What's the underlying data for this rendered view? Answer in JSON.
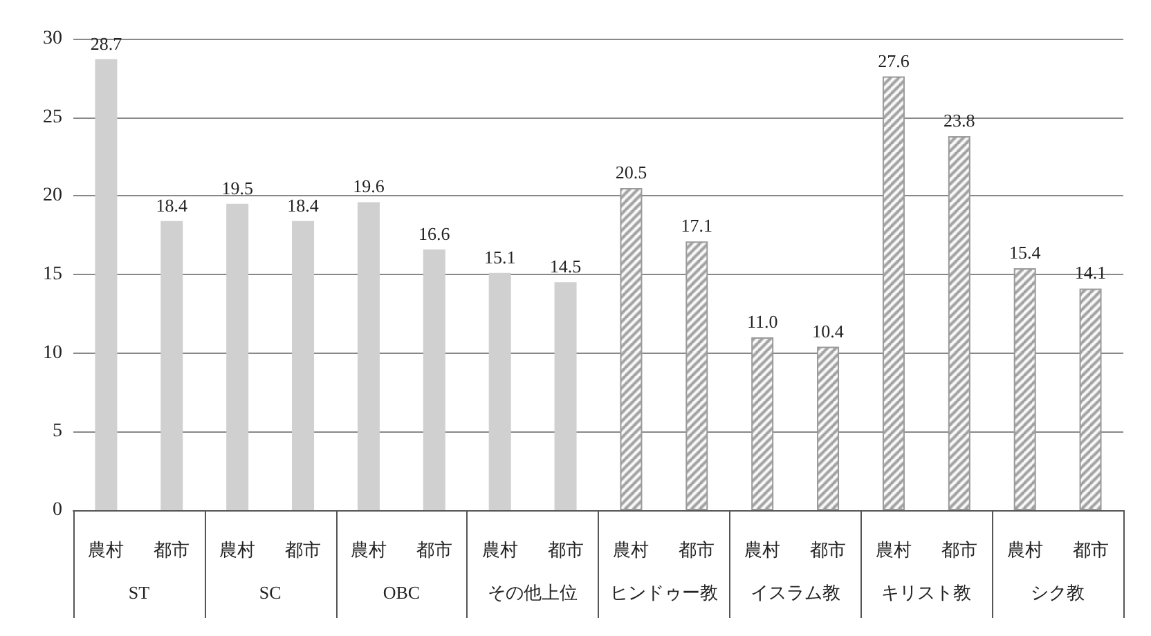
{
  "chart_data": {
    "type": "bar",
    "categories": [
      "農村",
      "都市",
      "農村",
      "都市",
      "農村",
      "都市",
      "農村",
      "都市",
      "農村",
      "都市",
      "農村",
      "都市",
      "農村",
      "都市",
      "農村",
      "都市"
    ],
    "series": [
      {
        "color": "#d0d0d0",
        "values": [
          28.7,
          18.4,
          19.5,
          18.4,
          19.6,
          16.6,
          15.1,
          14.5,
          null,
          null,
          null,
          null,
          null,
          null,
          null,
          null
        ],
        "value_labels": [
          "28.7",
          "18.4",
          "19.5",
          "18.4",
          "19.6",
          "16.6",
          "15.1",
          "14.5",
          null,
          null,
          null,
          null,
          null,
          null,
          null,
          null
        ]
      },
      {
        "color": "#9a9a9a",
        "values": [
          null,
          null,
          null,
          null,
          null,
          null,
          null,
          null,
          20.5,
          17.1,
          11.0,
          10.4,
          27.6,
          23.8,
          15.4,
          14.1
        ],
        "value_labels": [
          null,
          null,
          null,
          null,
          null,
          null,
          null,
          null,
          "20.5",
          "17.1",
          "11.0",
          "10.4",
          "27.6",
          "23.8",
          "15.4",
          "14.1"
        ]
      }
    ],
    "annotations": [
      "ST",
      "SC",
      "OBC",
      "その他上位",
      "ヒンドゥー教",
      "イスラム教",
      "キリスト教",
      "シク教"
    ],
    "ylim": [
      0,
      30
    ],
    "yticks": [
      0,
      5,
      10,
      15,
      20,
      25,
      30
    ],
    "grid": "y"
  }
}
